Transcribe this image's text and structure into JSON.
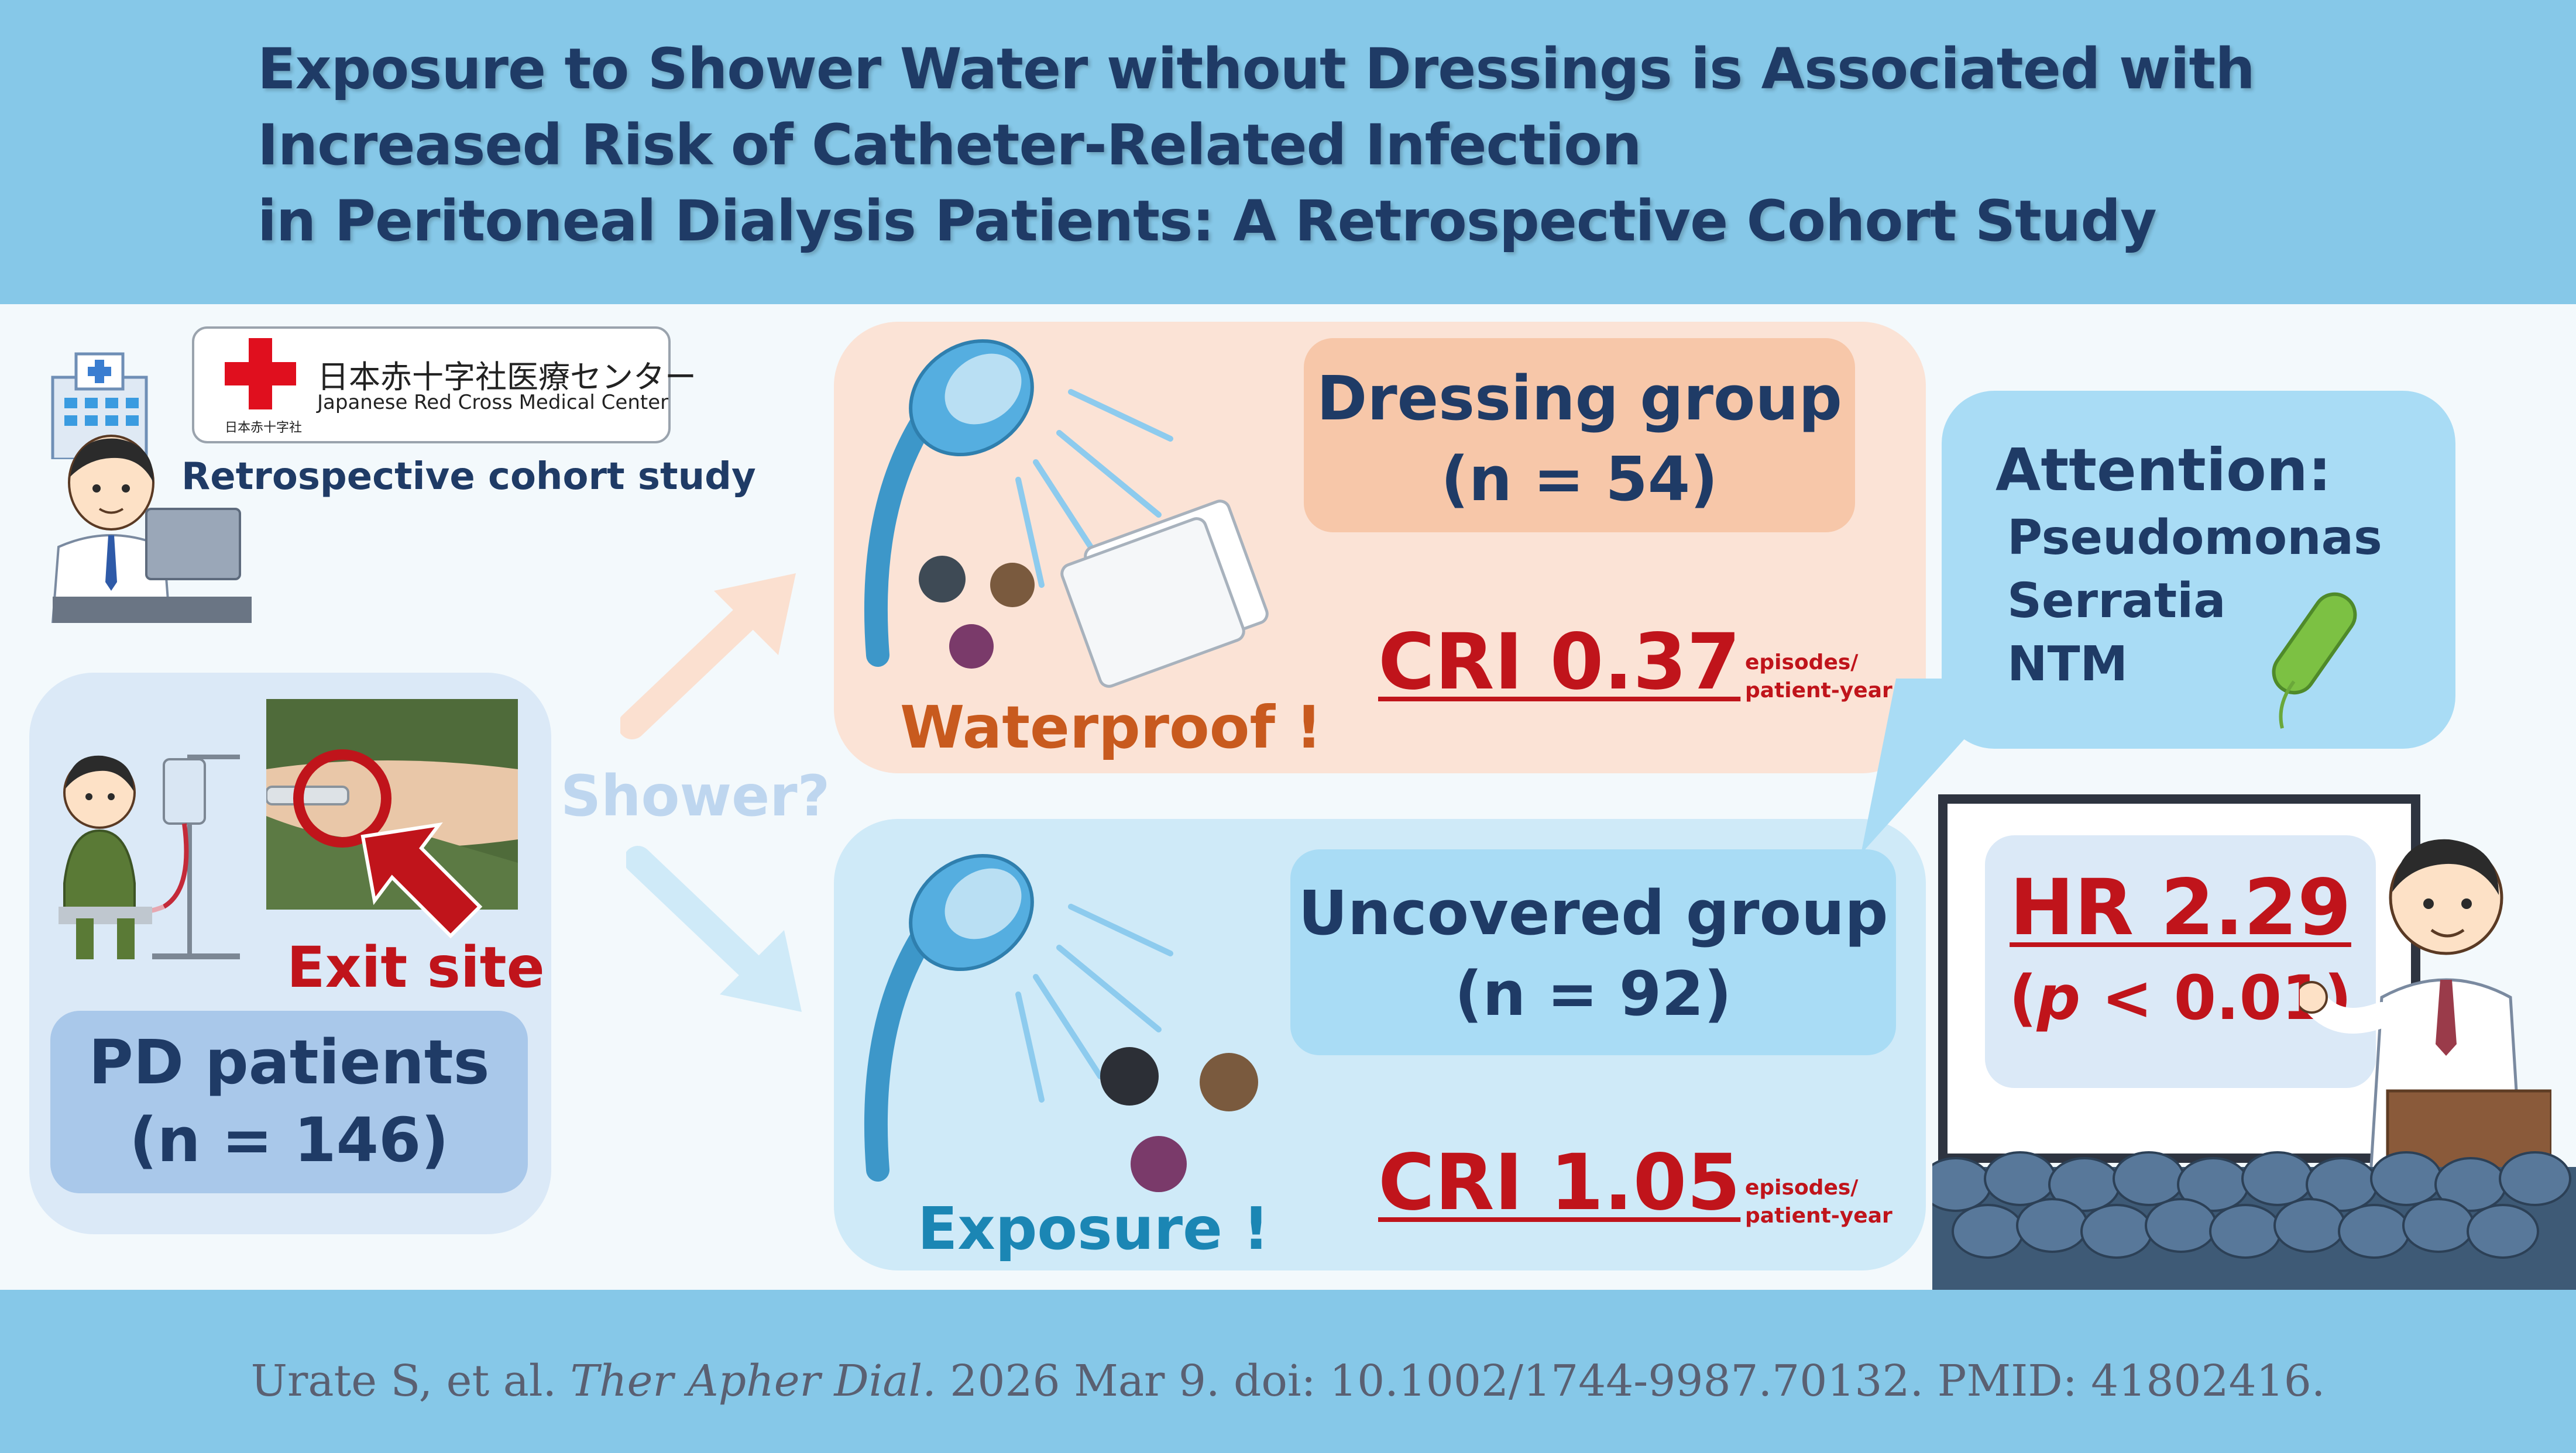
{
  "title": {
    "line1": "Exposure to Shower Water without Dressings is Associated with",
    "line2": "Increased Risk of Catheter-Related Infection",
    "line3": "in Peritoneal Dialysis Patients: A Retrospective Cohort Study"
  },
  "logo": {
    "name_jp": "日本赤十字社医療センター",
    "name_en": "Japanese Red Cross Medical Center",
    "small_jp": "日本赤十字社"
  },
  "study_type": "Retrospective cohort study",
  "patients": {
    "exit_site_label": "Exit site",
    "label": "PD patients",
    "n": "(n = 146)"
  },
  "shower_label": "Shower?",
  "dressing": {
    "group": "Dressing group",
    "n": "(n = 54)",
    "cri": "CRI 0.37",
    "unit_line1": "episodes/",
    "unit_line2": "patient-year",
    "tag": "Waterproof !"
  },
  "uncovered": {
    "group": "Uncovered group",
    "n": "(n = 92)",
    "cri": "CRI 1.05",
    "unit_line1": "episodes/",
    "unit_line2": "patient-year",
    "tag": "Exposure !"
  },
  "attention": {
    "heading": "Attention:",
    "items": [
      "Pseudomonas",
      "Serratia",
      "NTM"
    ]
  },
  "result": {
    "hr": "HR 2.29",
    "p_open": "(",
    "p_letter": "p",
    "p_rest": " < 0.01)"
  },
  "citation": {
    "authors": "Urate S, et al. ",
    "journal": "Ther Apher Dial.",
    "rest": " 2026 Mar 9. doi: 10.1002/1744-9987.70132. PMID: 41802416."
  },
  "colors": {
    "band": "#86c8e8",
    "navy": "#1f3b66",
    "red": "#c0141b",
    "dressing_panel": "#fbe3d6",
    "dressing_box": "#f7c7a9",
    "uncovered_panel": "#cfeaf8",
    "uncovered_box": "#a9dcf5"
  }
}
